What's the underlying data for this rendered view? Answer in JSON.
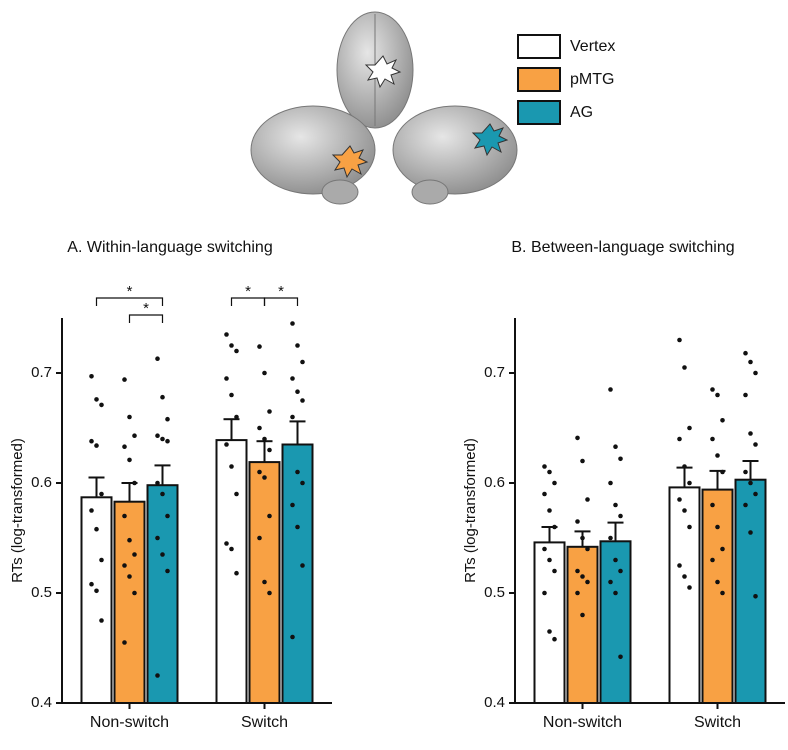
{
  "chart_data": [
    {
      "type": "bar",
      "title": "A. Within-language switching",
      "ylabel": "RTs (log-transformed)",
      "categories": [
        "Non-switch",
        "Switch"
      ],
      "ylim": [
        0.4,
        0.75
      ],
      "yticks": [
        0.4,
        0.5,
        0.6,
        0.7
      ],
      "series": [
        {
          "name": "Vertex",
          "color": "#ffffff",
          "values": [
            0.587,
            0.639
          ],
          "errors": [
            0.018,
            0.019
          ],
          "points": [
            [
              0.697,
              0.676,
              0.671,
              0.638,
              0.634,
              0.59,
              0.575,
              0.558,
              0.53,
              0.508,
              0.502,
              0.475
            ],
            [
              0.735,
              0.725,
              0.72,
              0.695,
              0.68,
              0.66,
              0.635,
              0.615,
              0.59,
              0.545,
              0.54,
              0.518
            ]
          ]
        },
        {
          "name": "pMTG",
          "color": "#f8a144",
          "values": [
            0.583,
            0.619
          ],
          "errors": [
            0.017,
            0.019
          ],
          "points": [
            [
              0.694,
              0.66,
              0.643,
              0.633,
              0.621,
              0.6,
              0.57,
              0.548,
              0.535,
              0.525,
              0.515,
              0.5,
              0.455
            ],
            [
              0.724,
              0.7,
              0.665,
              0.65,
              0.64,
              0.63,
              0.61,
              0.605,
              0.57,
              0.55,
              0.51,
              0.5
            ]
          ]
        },
        {
          "name": "AG",
          "color": "#1a98b0",
          "values": [
            0.598,
            0.635
          ],
          "errors": [
            0.018,
            0.021
          ],
          "points": [
            [
              0.713,
              0.678,
              0.658,
              0.643,
              0.64,
              0.638,
              0.6,
              0.59,
              0.57,
              0.55,
              0.535,
              0.52,
              0.425
            ],
            [
              0.745,
              0.725,
              0.71,
              0.695,
              0.683,
              0.675,
              0.66,
              0.61,
              0.6,
              0.58,
              0.56,
              0.525,
              0.46
            ]
          ]
        }
      ],
      "annotations": [
        {
          "text": "*",
          "category": "Non-switch",
          "from": "Vertex",
          "to": "AG"
        },
        {
          "text": "*",
          "category": "Non-switch",
          "from": "pMTG",
          "to": "AG"
        },
        {
          "text": "*",
          "category": "Switch",
          "from": "Vertex",
          "to": "pMTG"
        },
        {
          "text": "*",
          "category": "Switch",
          "from": "pMTG",
          "to": "AG"
        }
      ]
    },
    {
      "type": "bar",
      "title": "B. Between-language switching",
      "ylabel": "RTs (log-transformed)",
      "categories": [
        "Non-switch",
        "Switch"
      ],
      "ylim": [
        0.4,
        0.75
      ],
      "yticks": [
        0.4,
        0.5,
        0.6,
        0.7
      ],
      "series": [
        {
          "values": [
            0.546,
            0.596
          ],
          "errors": [
            0.014,
            0.018
          ],
          "points": [
            [
              0.615,
              0.61,
              0.6,
              0.59,
              0.575,
              0.56,
              0.54,
              0.53,
              0.52,
              0.5,
              0.465,
              0.458
            ],
            [
              0.73,
              0.705,
              0.65,
              0.64,
              0.615,
              0.6,
              0.585,
              0.575,
              0.56,
              0.525,
              0.515,
              0.505
            ]
          ]
        },
        {
          "values": [
            0.542,
            0.594
          ],
          "errors": [
            0.014,
            0.017
          ],
          "points": [
            [
              0.641,
              0.62,
              0.585,
              0.565,
              0.55,
              0.54,
              0.52,
              0.515,
              0.51,
              0.5,
              0.48
            ],
            [
              0.685,
              0.68,
              0.657,
              0.64,
              0.625,
              0.61,
              0.58,
              0.56,
              0.54,
              0.53,
              0.51,
              0.5
            ]
          ]
        },
        {
          "values": [
            0.547,
            0.603
          ],
          "errors": [
            0.017,
            0.017
          ],
          "points": [
            [
              0.685,
              0.633,
              0.622,
              0.6,
              0.58,
              0.57,
              0.55,
              0.53,
              0.52,
              0.51,
              0.5,
              0.442
            ],
            [
              0.718,
              0.71,
              0.7,
              0.68,
              0.645,
              0.635,
              0.61,
              0.6,
              0.59,
              0.58,
              0.555,
              0.497
            ]
          ]
        }
      ]
    }
  ]
}
